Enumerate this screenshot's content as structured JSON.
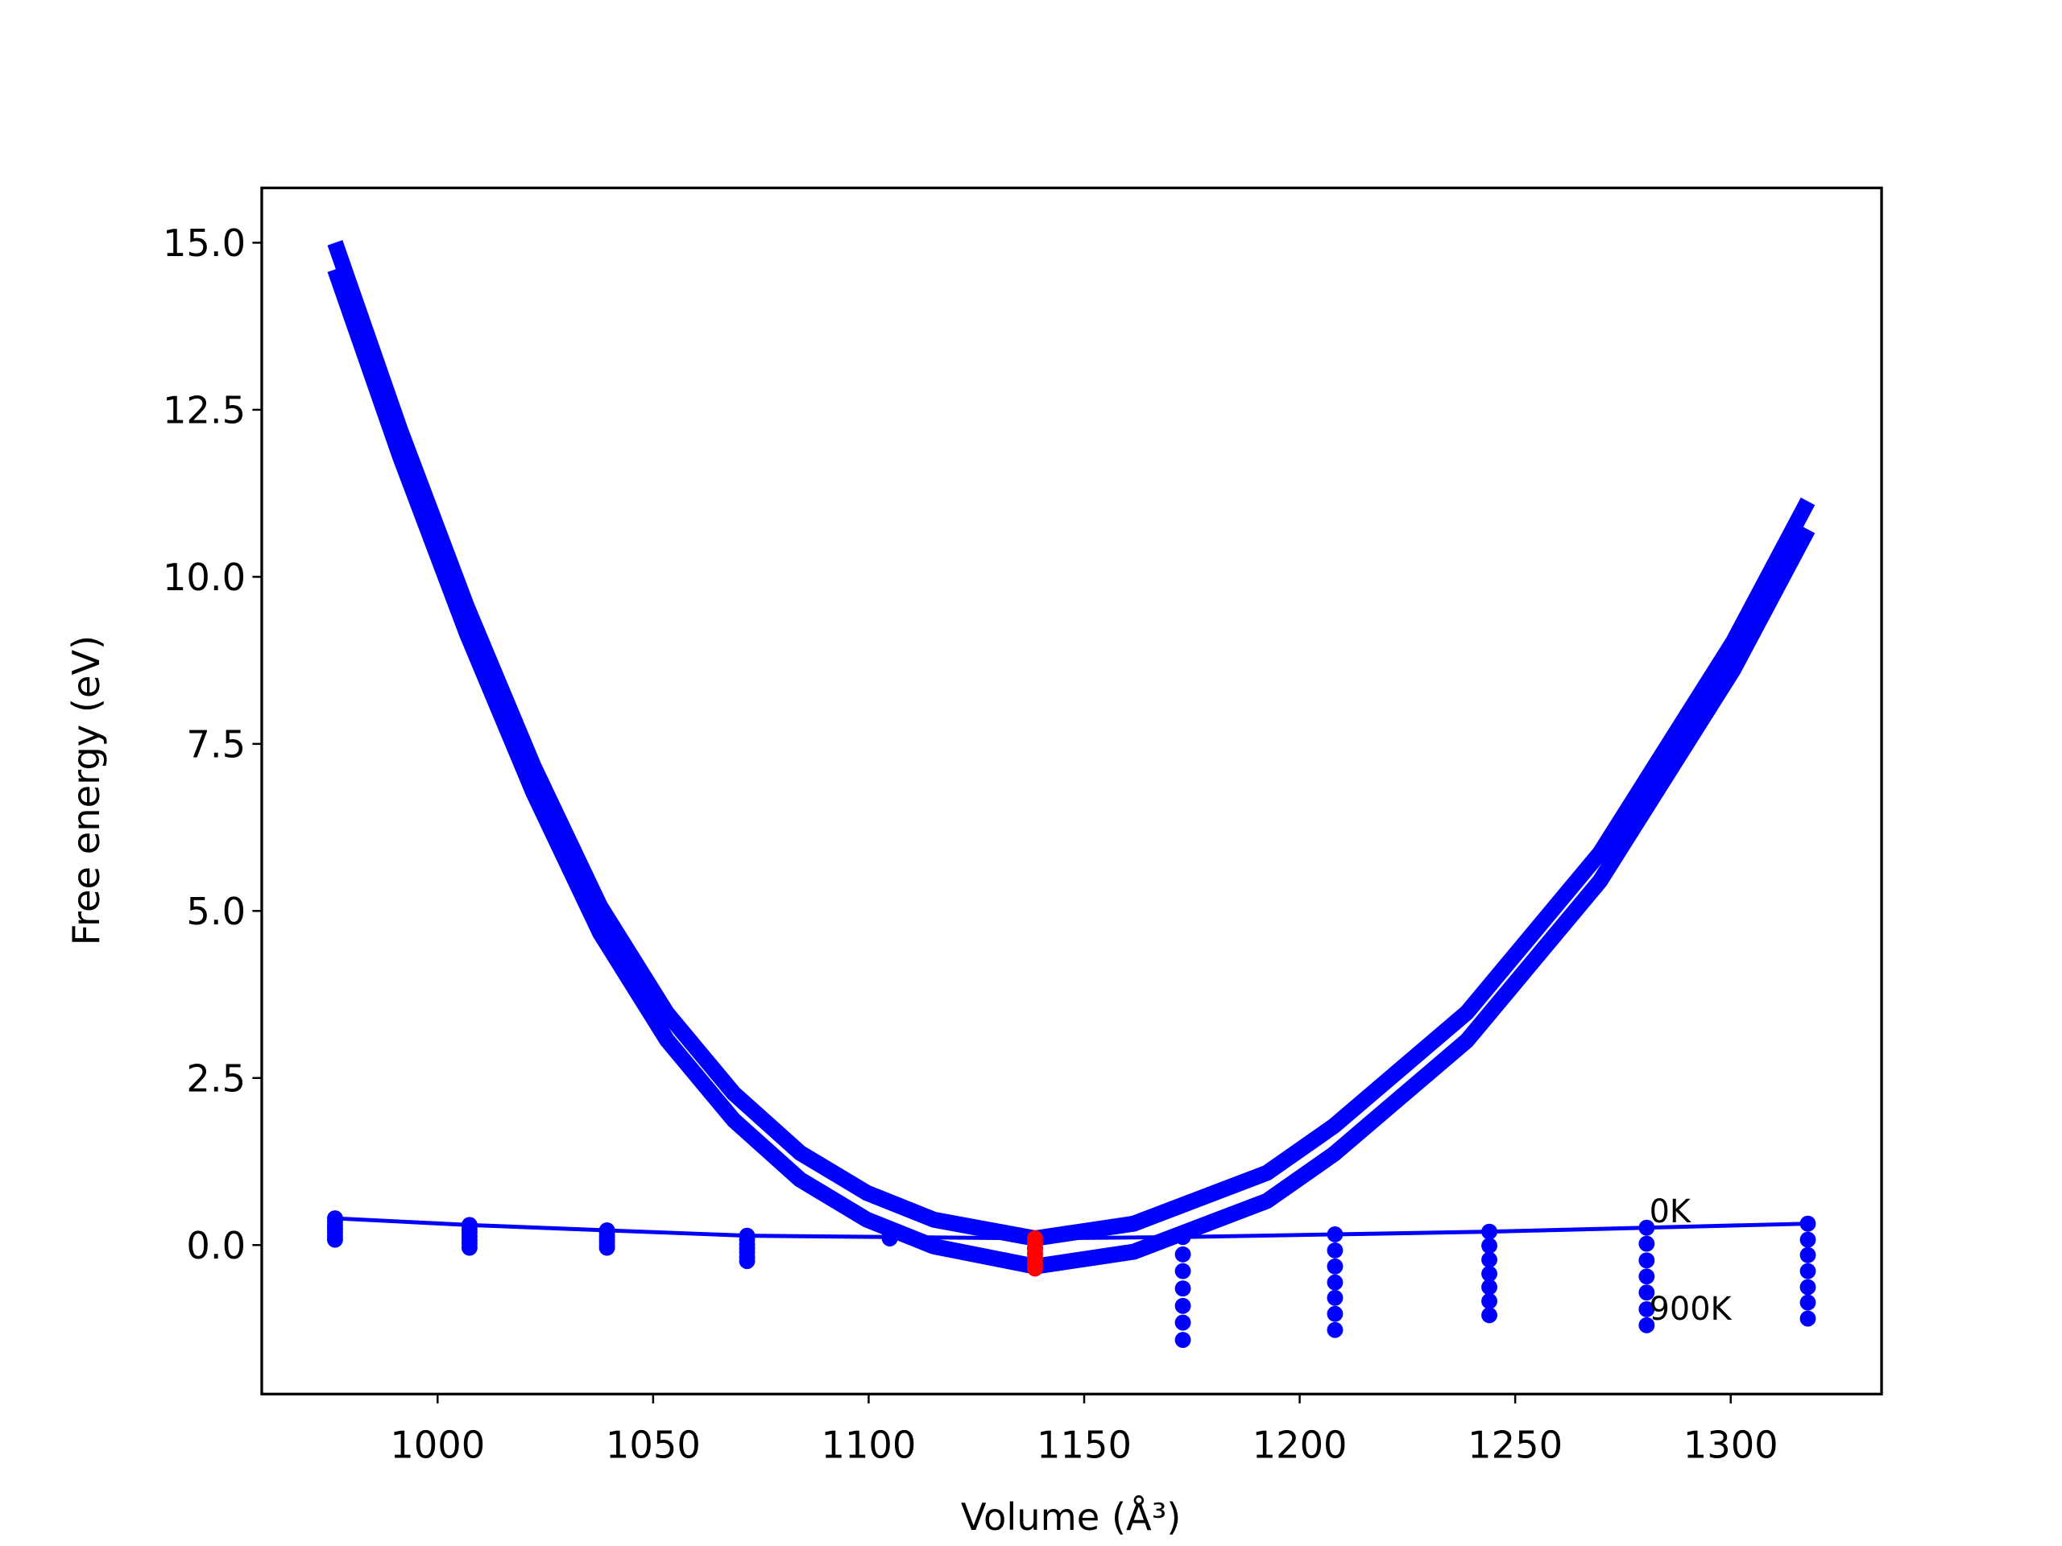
{
  "chart_data": {
    "type": "line",
    "xlabel": "Volume (Å³)",
    "ylabel": "Free energy (eV)",
    "xlim": [
      959.2,
      1335.0
    ],
    "ylim": [
      -2.23,
      15.82
    ],
    "xticks": [
      1000,
      1050,
      1100,
      1150,
      1200,
      1250,
      1300
    ],
    "yticks": [
      {
        "value": 0,
        "label": "0.0"
      },
      2.5,
      {
        "value": 5,
        "label": "5.0"
      },
      7.5,
      {
        "value": 10,
        "label": "10.0"
      },
      12.5,
      {
        "value": 15,
        "label": "15.0"
      }
    ],
    "annotations": [
      {
        "text": "0K",
        "series": 2
      },
      {
        "text": "900K",
        "series": 8
      }
    ],
    "series": [
      {
        "style": "line",
        "color": "#0000ff",
        "x": [
          976.2,
          991.3,
          1006.8,
          1022.3,
          1037.7,
          1053.2,
          1068.7,
          1084.1,
          1099.6,
          1115.1,
          1138.6,
          1161.5,
          1192.4,
          1207.9,
          1238.8,
          1269.7,
          1300.6,
          1317.9
        ],
        "values": [
          15.0,
          12.2,
          9.55,
          7.16,
          5.07,
          3.47,
          2.27,
          1.38,
          0.78,
          0.38,
          0.1,
          0.32,
          1.08,
          1.78,
          3.48,
          5.87,
          9.03,
          11.13
        ]
      },
      {
        "style": "line",
        "color": "#0000ff",
        "x": [
          976.2,
          991.3,
          1006.8,
          1022.3,
          1037.7,
          1053.2,
          1068.7,
          1084.1,
          1099.6,
          1115.1,
          1138.6,
          1161.5,
          1192.4,
          1207.9,
          1238.8,
          1269.7,
          1300.6,
          1317.9
        ],
        "values": [
          14.6,
          11.8,
          9.15,
          6.76,
          4.67,
          3.07,
          1.87,
          0.98,
          0.38,
          -0.02,
          -0.32,
          -0.1,
          0.66,
          1.36,
          3.06,
          5.45,
          8.61,
          10.71
        ]
      },
      {
        "style": "line+markers",
        "color": "#0000ff",
        "x": [
          976.2,
          1007.4,
          1039.3,
          1071.8,
          1104.9,
          1138.6,
          1172.9,
          1208.2,
          1244.0,
          1280.5,
          1317.9
        ],
        "values": [
          0.4,
          0.3,
          0.22,
          0.14,
          0.12,
          0.1,
          0.12,
          0.16,
          0.2,
          0.26,
          0.32
        ]
      },
      {
        "style": "markers",
        "color": "#0000ff",
        "x": [
          976.2,
          1007.4,
          1039.3,
          1071.8,
          1104.9,
          1138.6,
          1172.9,
          1208.2,
          1244.0,
          1280.5,
          1317.9
        ],
        "values": [
          0.35,
          0.24,
          0.18,
          0.08,
          0.12,
          0.03,
          -0.14,
          -0.08,
          -0.01,
          0.02,
          0.08
        ]
      },
      {
        "style": "markers",
        "color": "#0000ff",
        "x": [
          976.2,
          1007.4,
          1039.3,
          1071.8,
          1104.9,
          1138.6,
          1172.9,
          1208.2,
          1244.0,
          1280.5,
          1317.9
        ],
        "values": [
          0.29,
          0.19,
          0.13,
          0.01,
          0.11,
          -0.05,
          -0.39,
          -0.32,
          -0.22,
          -0.23,
          -0.15
        ]
      },
      {
        "style": "markers",
        "color": "#0000ff",
        "x": [
          976.2,
          1007.4,
          1039.3,
          1071.8,
          1104.9,
          1138.6,
          1172.9,
          1208.2,
          1244.0,
          1280.5,
          1317.9
        ],
        "values": [
          0.24,
          0.13,
          0.09,
          -0.05,
          0.11,
          -0.13,
          -0.65,
          -0.56,
          -0.43,
          -0.47,
          -0.39
        ]
      },
      {
        "style": "markers",
        "color": "#0000ff",
        "x": [
          976.2,
          1007.4,
          1039.3,
          1071.8,
          1104.9,
          1138.6,
          1172.9,
          1208.2,
          1244.0,
          1280.5,
          1317.9
        ],
        "values": [
          0.19,
          0.07,
          0.05,
          -0.11,
          0.11,
          -0.2,
          -0.91,
          -0.79,
          -0.63,
          -0.71,
          -0.63
        ]
      },
      {
        "style": "markers",
        "color": "#0000ff",
        "x": [
          976.2,
          1007.4,
          1039.3,
          1071.8,
          1104.9,
          1138.6,
          1172.9,
          1208.2,
          1244.0,
          1280.5,
          1317.9
        ],
        "values": [
          0.13,
          0.02,
          0.0,
          -0.18,
          0.1,
          -0.28,
          -1.16,
          -1.03,
          -0.84,
          -0.96,
          -0.86
        ]
      },
      {
        "style": "markers",
        "color": "#0000ff",
        "x": [
          976.2,
          1007.4,
          1039.3,
          1071.8,
          1104.9,
          1138.6,
          1172.9,
          1208.2,
          1244.0,
          1280.5,
          1317.9
        ],
        "values": [
          0.08,
          -0.04,
          -0.04,
          -0.24,
          0.1,
          -0.35,
          -1.42,
          -1.27,
          -1.05,
          -1.2,
          -1.1
        ]
      },
      {
        "style": "markers",
        "color": "#ff0000",
        "x": [
          1138.6,
          1138.6,
          1138.6,
          1138.6,
          1138.6,
          1138.6,
          1138.6
        ],
        "values": [
          0.1,
          0.03,
          -0.05,
          -0.13,
          -0.2,
          -0.28,
          -0.35
        ]
      }
    ]
  }
}
